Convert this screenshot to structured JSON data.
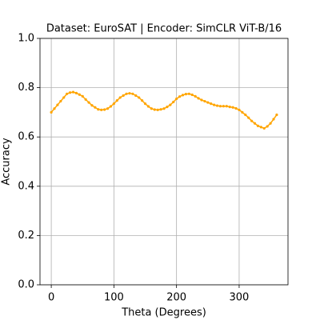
{
  "chart_data": {
    "type": "line",
    "title": "Dataset: EuroSAT | Encoder: SimCLR ViT-B/16",
    "xlabel": "Theta (Degrees)",
    "ylabel": "Accuracy",
    "x": [
      0,
      5,
      10,
      15,
      20,
      25,
      30,
      35,
      40,
      45,
      50,
      55,
      60,
      65,
      70,
      75,
      80,
      85,
      90,
      95,
      100,
      105,
      110,
      115,
      120,
      125,
      130,
      135,
      140,
      145,
      150,
      155,
      160,
      165,
      170,
      175,
      180,
      185,
      190,
      195,
      200,
      205,
      210,
      215,
      220,
      225,
      230,
      235,
      240,
      245,
      250,
      255,
      260,
      265,
      270,
      275,
      280,
      285,
      290,
      295,
      300,
      305,
      310,
      315,
      320,
      325,
      330,
      335,
      340,
      345,
      350,
      355,
      360
    ],
    "series": [
      {
        "name": "Accuracy",
        "color": "#ffa500",
        "values": [
          0.7,
          0.715,
          0.73,
          0.745,
          0.76,
          0.775,
          0.78,
          0.782,
          0.778,
          0.772,
          0.765,
          0.752,
          0.74,
          0.728,
          0.72,
          0.712,
          0.71,
          0.711,
          0.715,
          0.724,
          0.735,
          0.748,
          0.76,
          0.768,
          0.775,
          0.777,
          0.775,
          0.768,
          0.76,
          0.748,
          0.735,
          0.724,
          0.715,
          0.711,
          0.71,
          0.712,
          0.715,
          0.722,
          0.73,
          0.742,
          0.755,
          0.764,
          0.77,
          0.774,
          0.775,
          0.771,
          0.765,
          0.757,
          0.75,
          0.745,
          0.74,
          0.735,
          0.73,
          0.727,
          0.725,
          0.725,
          0.725,
          0.722,
          0.72,
          0.716,
          0.71,
          0.7,
          0.69,
          0.678,
          0.665,
          0.655,
          0.645,
          0.64,
          0.635,
          0.643,
          0.655,
          0.672,
          0.69
        ]
      }
    ],
    "xlim": [
      -18,
      378
    ],
    "xticks": [
      0,
      100,
      200,
      300
    ],
    "ylim": [
      0,
      1
    ],
    "yticks": [
      {
        "value": 0,
        "label": "0.0"
      },
      {
        "value": 0.2,
        "label": "0.2"
      },
      {
        "value": 0.4,
        "label": "0.4"
      },
      {
        "value": 0.6,
        "label": "0.6"
      },
      {
        "value": 0.8,
        "label": "0.8"
      },
      {
        "value": 1,
        "label": "1.0"
      }
    ],
    "grid": true
  }
}
